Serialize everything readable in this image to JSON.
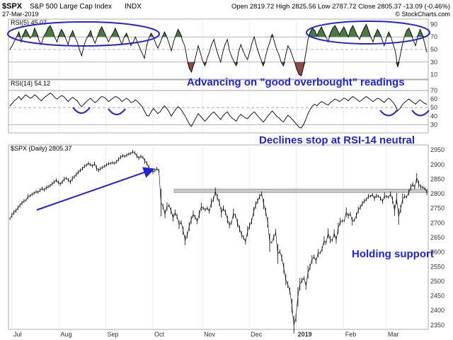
{
  "header": {
    "symbol": "$SPX",
    "name": "S&P 500 Large Cap Index",
    "exchange": "INDX",
    "date": "27-Mar-2019",
    "quote": "Open 2819.72  High 2825.56  Low 2787.72  Close 2805.37  -13.09 (-0.46%)",
    "watermark": "© StockCharts.com"
  },
  "colors": {
    "price": "#000000",
    "rsi_line": "#000000",
    "overbought_fill": "#4a7a42",
    "oversold_fill": "#8a4a46",
    "annotation": "#1f24d9",
    "grid": "#b8b8b8",
    "resistance_band": "#c8c8c8"
  },
  "panels": {
    "rsi5_label": "RSI(5) 45.07",
    "rsi14_label": "RSI(14) 54.12",
    "price_label": "$SPX (Daily) 2805.37"
  },
  "annotations": {
    "rsi5_note": "Advancing on \"good overbought\" readings",
    "rsi14_note": "Declines stop at RSI-14 neutral",
    "price_note": "Holding support"
  },
  "chart_data": [
    {
      "type": "line",
      "title": "RSI(5) 45.07",
      "ylim": [
        5,
        95
      ],
      "yticks": [
        10,
        30,
        50,
        70,
        90
      ],
      "levels": [
        30,
        50,
        70
      ],
      "x_labels": [
        "Jul",
        "Aug",
        "Sep",
        "Oct",
        "Nov",
        "Dec",
        "2019",
        "Feb",
        "Mar"
      ],
      "series": [
        {
          "values": [
            50,
            56,
            63,
            70,
            78,
            62,
            74,
            82,
            76,
            68,
            72,
            84,
            76,
            64,
            58,
            70,
            76,
            84,
            88,
            80,
            70,
            62,
            74,
            82,
            76,
            66,
            58,
            72,
            80,
            70,
            62,
            50,
            40,
            56,
            66,
            72,
            80,
            68,
            60,
            70,
            80,
            86,
            78,
            70,
            62,
            70,
            76,
            84,
            76,
            66,
            58,
            70,
            76,
            66,
            56,
            62,
            70,
            60,
            52,
            44,
            36,
            56,
            68,
            76,
            70,
            60,
            52,
            60,
            70,
            78,
            70,
            60,
            48,
            62,
            72,
            82,
            76,
            64,
            56,
            36,
            20,
            14,
            26,
            40,
            56,
            44,
            32,
            24,
            36,
            46,
            58,
            66,
            52,
            40,
            30,
            46,
            58,
            66,
            48,
            38,
            30,
            24,
            46,
            58,
            48,
            40,
            34,
            46,
            60,
            70,
            56,
            44,
            34,
            24,
            38,
            52,
            62,
            74,
            62,
            50,
            42,
            30,
            24,
            40,
            56,
            50,
            40,
            30,
            18,
            10,
            8,
            22,
            44,
            66,
            78,
            84,
            80,
            72,
            80,
            86,
            78,
            70,
            62,
            76,
            84,
            88,
            82,
            74,
            80,
            86,
            78,
            70,
            82,
            88,
            80,
            72,
            66,
            76,
            84,
            90,
            80,
            70,
            62,
            74,
            82,
            76,
            66,
            56,
            68,
            78,
            70,
            58,
            46,
            22,
            38,
            56,
            70,
            80,
            84,
            76,
            64,
            56,
            72,
            82,
            74,
            60,
            46
          ]
        }
      ]
    },
    {
      "type": "line",
      "title": "RSI(14) 54.12",
      "ylim": [
        22,
        80
      ],
      "yticks": [
        30,
        40,
        50,
        60,
        70
      ],
      "levels": [
        30,
        50,
        70
      ],
      "x_labels": [
        "Jul",
        "Aug",
        "Sep",
        "Oct",
        "Nov",
        "Dec",
        "2019",
        "Feb",
        "Mar"
      ],
      "series": [
        {
          "values": [
            52,
            55,
            58,
            60,
            63,
            59,
            62,
            65,
            63,
            61,
            62,
            65,
            63,
            60,
            58,
            61,
            63,
            65,
            67,
            65,
            62,
            60,
            62,
            64,
            63,
            60,
            57,
            60,
            62,
            60,
            58,
            54,
            51,
            54,
            57,
            59,
            61,
            58,
            56,
            58,
            61,
            63,
            62,
            60,
            57,
            59,
            61,
            63,
            62,
            60,
            57,
            59,
            61,
            59,
            56,
            57,
            59,
            57,
            54,
            51,
            46,
            41,
            40,
            45,
            49,
            46,
            43,
            45,
            49,
            52,
            49,
            45,
            40,
            44,
            48,
            51,
            49,
            45,
            41,
            36,
            31,
            28,
            33,
            38,
            43,
            40,
            37,
            34,
            37,
            40,
            43,
            45,
            42,
            39,
            36,
            40,
            43,
            45,
            41,
            38,
            36,
            34,
            39,
            42,
            40,
            38,
            37,
            40,
            43,
            45,
            42,
            39,
            36,
            33,
            36,
            40,
            43,
            46,
            43,
            40,
            38,
            35,
            33,
            37,
            41,
            39,
            36,
            33,
            30,
            27,
            26,
            30,
            36,
            43,
            48,
            52,
            54,
            52,
            55,
            57,
            56,
            54,
            53,
            56,
            58,
            60,
            59,
            57,
            59,
            61,
            60,
            58,
            61,
            63,
            61,
            59,
            57,
            59,
            61,
            63,
            61,
            59,
            57,
            59,
            61,
            60,
            58,
            56,
            59,
            61,
            59,
            56,
            52,
            46,
            49,
            53,
            56,
            58,
            60,
            58,
            56,
            54,
            57,
            59,
            57,
            55,
            54
          ]
        }
      ]
    },
    {
      "type": "line",
      "title": "$SPX (Daily) 2805.37",
      "ylim": [
        2340,
        2960
      ],
      "yticks": [
        2350,
        2400,
        2450,
        2500,
        2550,
        2600,
        2650,
        2700,
        2750,
        2800,
        2850,
        2900,
        2950
      ],
      "x_labels": [
        "Jul",
        "Aug",
        "Sep",
        "Oct",
        "Nov",
        "Dec",
        "2019",
        "Feb",
        "Mar"
      ],
      "support_level": 2810,
      "series": [
        {
          "values": [
            2714,
            2726,
            2736,
            2742,
            2752,
            2760,
            2768,
            2775,
            2778,
            2790,
            2793,
            2798,
            2802,
            2807,
            2805,
            2812,
            2818,
            2813,
            2820,
            2824,
            2828,
            2834,
            2840,
            2846,
            2839,
            2833,
            2840,
            2850,
            2853,
            2847,
            2840,
            2852,
            2858,
            2866,
            2874,
            2880,
            2886,
            2894,
            2898,
            2904,
            2900,
            2895,
            2903,
            2888,
            2880,
            2886,
            2890,
            2894,
            2899,
            2903,
            2904,
            2906,
            2904,
            2910,
            2918,
            2925,
            2930,
            2928,
            2932,
            2936,
            2938,
            2944,
            2940,
            2930,
            2922,
            2928,
            2925,
            2912,
            2904,
            2888,
            2880,
            2874,
            2880,
            2886,
            2878,
            2770,
            2756,
            2730,
            2756,
            2760,
            2742,
            2718,
            2735,
            2722,
            2694,
            2702,
            2674,
            2641,
            2658,
            2687,
            2710,
            2730,
            2720,
            2706,
            2730,
            2755,
            2750,
            2745,
            2751,
            2740,
            2768,
            2781,
            2807,
            2788,
            2770,
            2736,
            2750,
            2736,
            2712,
            2693,
            2700,
            2732,
            2725,
            2700,
            2680,
            2660,
            2650,
            2636,
            2671,
            2690,
            2706,
            2738,
            2761,
            2775,
            2790,
            2800,
            2765,
            2738,
            2702,
            2633,
            2633,
            2650,
            2668,
            2594,
            2602,
            2581,
            2545,
            2506,
            2488,
            2467,
            2416,
            2351,
            2374,
            2447,
            2490,
            2503,
            2510,
            2485,
            2531,
            2549,
            2575,
            2584,
            2570,
            2596,
            2597,
            2610,
            2639,
            2632,
            2664,
            2643,
            2640,
            2664,
            2642,
            2681,
            2704,
            2707,
            2707,
            2737,
            2724,
            2731,
            2706,
            2709,
            2725,
            2744,
            2754,
            2766,
            2775,
            2780,
            2791,
            2792,
            2796,
            2784,
            2793,
            2792,
            2784,
            2774,
            2793,
            2790,
            2788,
            2799,
            2779,
            2743,
            2783,
            2722,
            2748,
            2783,
            2791,
            2789,
            2804,
            2822,
            2832,
            2823,
            2854,
            2833,
            2824,
            2822,
            2818,
            2805
          ]
        }
      ]
    }
  ]
}
